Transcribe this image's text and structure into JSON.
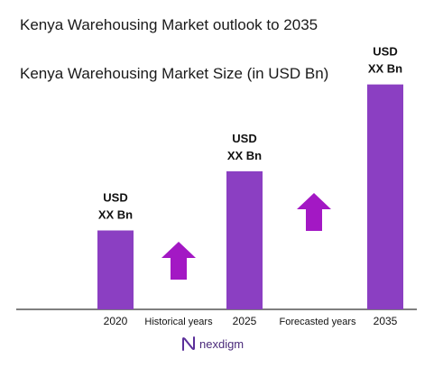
{
  "title": "Kenya Warehousing Market outlook to 2035",
  "chart_data": {
    "type": "bar",
    "title": "Kenya Warehousing Market Size (in USD Bn)",
    "categories": [
      "2020",
      "2025",
      "2035"
    ],
    "values": [
      1,
      1.75,
      2.85
    ],
    "value_labels": [
      [
        "USD",
        "XX Bn"
      ],
      [
        "USD",
        "XX Bn"
      ],
      [
        "USD",
        "XX Bn"
      ]
    ],
    "annotations": [
      "Historical years",
      "Forecasted years"
    ],
    "bar_color": "#8b3fc2",
    "arrow_color": "#a318c4",
    "xlabel": "",
    "ylabel": "",
    "grid": false,
    "legend": "none"
  },
  "brand": {
    "name": "nexdigm",
    "icon": "nexdigm-logo-icon",
    "color": "#4a2a7a"
  }
}
